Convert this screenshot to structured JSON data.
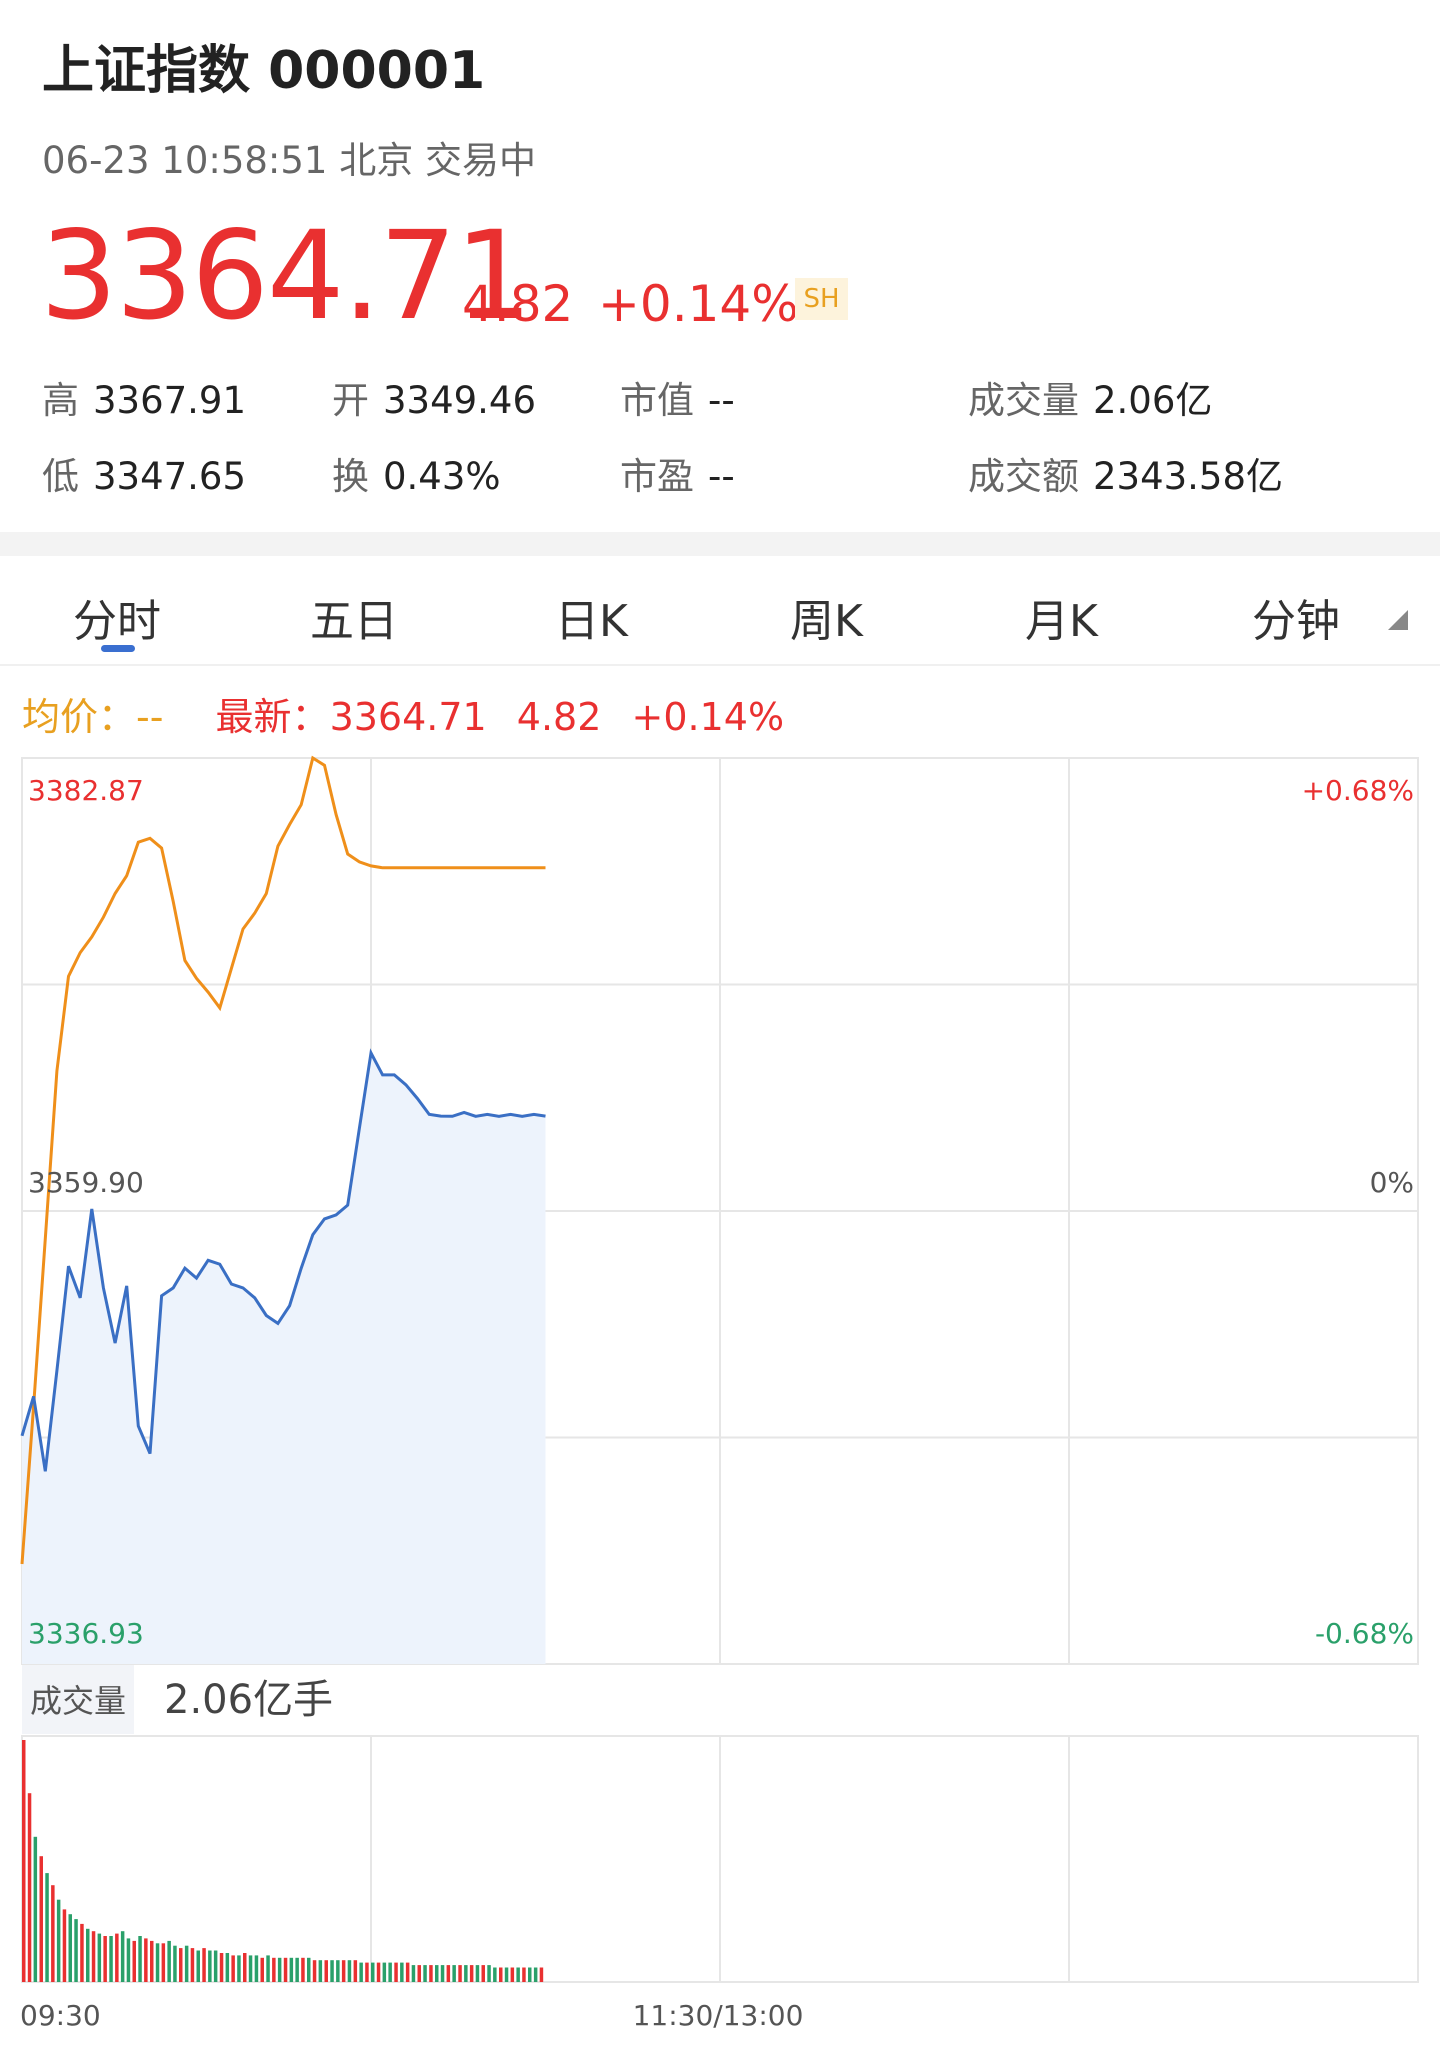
{
  "header": {
    "title": "上证指数 000001",
    "subtitle": "06-23 10:58:51 北京 交易中"
  },
  "quote": {
    "price": "3364.71",
    "change": "4.82",
    "change_pct": "+0.14%",
    "exchange": "SH"
  },
  "stats": [
    {
      "label": "高",
      "value": "3367.91"
    },
    {
      "label": "开",
      "value": "3349.46"
    },
    {
      "label": "市值",
      "value": "--"
    },
    {
      "label": "成交量",
      "value": "2.06亿"
    },
    {
      "label": "低",
      "value": "3347.65"
    },
    {
      "label": "换",
      "value": "0.43%"
    },
    {
      "label": "市盈",
      "value": "--"
    },
    {
      "label": "成交额",
      "value": "2343.58亿"
    }
  ],
  "tabs": [
    {
      "label": "分时",
      "active": true
    },
    {
      "label": "五日",
      "active": false
    },
    {
      "label": "日K",
      "active": false
    },
    {
      "label": "周K",
      "active": false
    },
    {
      "label": "月K",
      "active": false
    },
    {
      "label": "分钟",
      "active": false
    }
  ],
  "info": {
    "avg_label": "均价：",
    "avg_value": "--",
    "latest_label": "最新：",
    "latest_value": "3364.71",
    "latest_change": "4.82",
    "latest_pct": "+0.14%"
  },
  "volume": {
    "label": "成交量",
    "value": "2.06亿手"
  },
  "colors": {
    "up": "#e93030",
    "down": "#2aa06a",
    "price_line": "#3a6fc4",
    "avg_line": "#ef8f1a",
    "fill": "#edf3fc",
    "grid": "#e6e6e6",
    "tab_active": "#3a6fd0",
    "avg_label": "#e8a020"
  },
  "chart_data": [
    {
      "type": "line",
      "y_axis_left": {
        "top": "3382.87",
        "mid": "3359.90",
        "bottom": "3336.93"
      },
      "y_axis_right": {
        "top": "+0.68%",
        "mid": "0%",
        "bottom": "-0.68%"
      },
      "ylim": [
        3336.93,
        3382.87
      ],
      "x_ticks": [
        "09:30",
        "11:30/13:00"
      ],
      "session_minutes": 240,
      "series": [
        {
          "role": "price",
          "x": [
            0,
            2,
            4,
            6,
            8,
            10,
            12,
            14,
            16,
            18,
            20,
            22,
            24,
            26,
            28,
            30,
            32,
            34,
            36,
            38,
            40,
            42,
            44,
            46,
            48,
            50,
            52,
            54,
            56,
            58,
            60,
            62,
            64,
            66,
            68,
            70,
            72,
            74,
            76,
            78,
            80,
            82,
            84,
            86,
            88,
            90
          ],
          "values": [
            3348.5,
            3350.5,
            3346.7,
            3351.8,
            3357.1,
            3355.5,
            3360.0,
            3356.0,
            3353.2,
            3356.1,
            3349.0,
            3347.6,
            3355.6,
            3356.0,
            3357.0,
            3356.5,
            3357.4,
            3357.2,
            3356.2,
            3356.0,
            3355.5,
            3354.6,
            3354.2,
            3355.1,
            3357.0,
            3358.7,
            3359.5,
            3359.7,
            3360.2,
            3364.1,
            3367.91,
            3366.8,
            3366.8,
            3366.3,
            3365.6,
            3364.8,
            3364.71,
            3364.7,
            3364.9,
            3364.7,
            3364.8,
            3364.7,
            3364.8,
            3364.7,
            3364.8,
            3364.71
          ],
          "x_unit": "minutes since 09:30"
        },
        {
          "role": "average",
          "x": [
            0,
            2,
            4,
            6,
            8,
            10,
            12,
            14,
            16,
            18,
            20,
            22,
            24,
            26,
            28,
            30,
            32,
            34,
            36,
            38,
            40,
            42,
            44,
            46,
            48,
            50,
            52,
            54,
            56,
            58,
            60,
            62,
            64,
            66,
            68,
            70,
            72,
            74,
            76,
            78,
            80,
            82,
            84,
            86,
            88,
            90
          ],
          "values": [
            3342.0,
            3350.0,
            3358.5,
            3367.0,
            3371.8,
            3373.0,
            3373.8,
            3374.8,
            3376.0,
            3376.9,
            3378.6,
            3378.8,
            3378.3,
            3375.6,
            3372.6,
            3371.7,
            3371.0,
            3370.2,
            3372.2,
            3374.2,
            3375.0,
            3376.0,
            3378.4,
            3379.5,
            3380.5,
            3382.87,
            3382.5,
            3380.0,
            3378.0,
            3377.6,
            3377.4,
            3377.3,
            3377.3,
            3377.3,
            3377.3,
            3377.3,
            3377.3,
            3377.3,
            3377.3,
            3377.3,
            3377.3,
            3377.3,
            3377.3,
            3377.3,
            3377.3,
            3377.3
          ],
          "x_unit": "minutes since 09:30"
        }
      ],
      "grid": true
    },
    {
      "type": "bar",
      "title": "成交量",
      "x_unit": "minutes since 09:30",
      "values": [
        100,
        78,
        60,
        52,
        45,
        40,
        34,
        30,
        28,
        26,
        24,
        22,
        21,
        20,
        19,
        19,
        20,
        21,
        18,
        17,
        19,
        18,
        17,
        16,
        16,
        17,
        15,
        14,
        15,
        14,
        13,
        14,
        13,
        13,
        12,
        12,
        11,
        11,
        12,
        11,
        11,
        10,
        11,
        10,
        10,
        10,
        10,
        10,
        10,
        10,
        9,
        9,
        9,
        9,
        9,
        9,
        9,
        9,
        8,
        8,
        8,
        8,
        8,
        8,
        8,
        8,
        8,
        7,
        7,
        7,
        7,
        7,
        7,
        7,
        7,
        7,
        7,
        7,
        7,
        7,
        7,
        6,
        6,
        6,
        6,
        6,
        6,
        6,
        6,
        6
      ],
      "up": [
        true,
        true,
        false,
        true,
        false,
        true,
        false,
        true,
        false,
        false,
        true,
        false,
        true,
        false,
        true,
        false,
        true,
        false,
        false,
        true,
        false,
        true,
        true,
        false,
        true,
        false,
        false,
        true,
        false,
        true,
        false,
        true,
        false,
        false,
        true,
        false,
        true,
        false,
        true,
        false,
        false,
        true,
        false,
        true,
        false,
        true,
        false,
        false,
        true,
        false,
        true,
        false,
        true,
        false,
        false,
        true,
        false,
        true,
        false,
        true,
        false,
        true,
        false,
        false,
        true,
        false,
        true,
        false,
        true,
        false,
        true,
        false,
        false,
        true,
        false,
        true,
        false,
        true,
        false,
        true,
        false,
        false,
        true,
        false,
        true,
        false,
        true,
        false,
        false,
        true
      ]
    }
  ]
}
